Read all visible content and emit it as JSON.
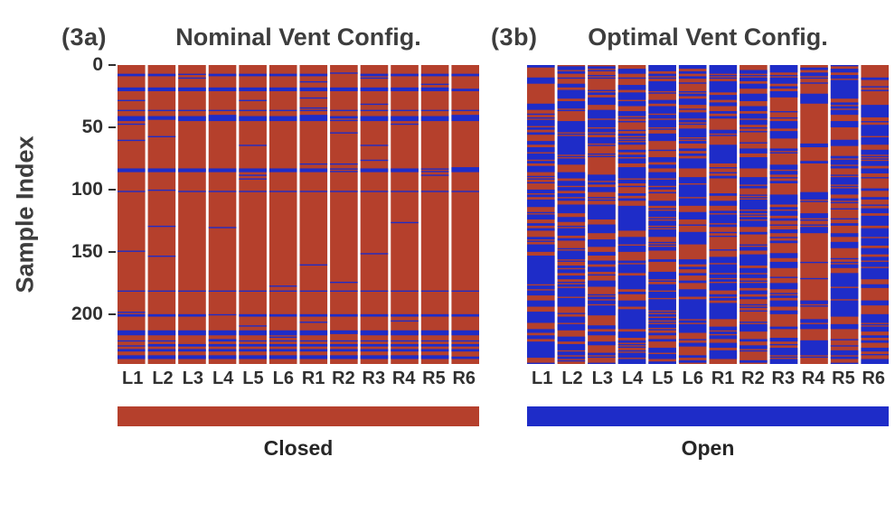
{
  "figure": {
    "ylabel": "Sample Index",
    "yticks": [
      0,
      50,
      100,
      150,
      200
    ],
    "n_samples": 240,
    "columns": [
      "L1",
      "L2",
      "L3",
      "L4",
      "L5",
      "L6",
      "R1",
      "R2",
      "R3",
      "R4",
      "R5",
      "R6"
    ],
    "panels": [
      {
        "tag": "(3a)",
        "title": "Nominal Vent Config."
      },
      {
        "tag": "(3b)",
        "title": "Optimal Vent Config."
      }
    ],
    "legend": [
      {
        "label": "Closed",
        "color": "#b5402c"
      },
      {
        "label": "Open",
        "color": "#1e2cc8"
      }
    ],
    "text_color": "#3d3d3d"
  },
  "chart_data": [
    {
      "type": "heatmap",
      "panel": "(3a)",
      "title": "Nominal Vent Config.",
      "x_categories": [
        "L1",
        "L2",
        "L3",
        "L4",
        "L5",
        "L6",
        "R1",
        "R2",
        "R3",
        "R4",
        "R5",
        "R6"
      ],
      "xlabel": "",
      "ylabel": "Sample Index",
      "y_range": [
        0,
        240
      ],
      "yticks": [
        0,
        50,
        100,
        150,
        200
      ],
      "cell_states": {
        "closed": {
          "label": "Closed",
          "color": "#b5402c"
        },
        "open": {
          "label": "Open",
          "color": "#1e2cc8"
        }
      },
      "open_fraction_overall": 0.15,
      "column_open_fraction": [
        0.15,
        0.15,
        0.15,
        0.15,
        0.15,
        0.15,
        0.15,
        0.15,
        0.15,
        0.15,
        0.15,
        0.15
      ],
      "pattern": "Predominantly Closed (red) background with sparse thin horizontal Open (blue) bands that span all 12 vents simultaneously",
      "generator": {
        "mode": "row-band",
        "seed": 11,
        "p_start": 0.085,
        "p_stay": 0.5,
        "cell_open_in_band": 0.96,
        "cell_noise_open": 0.015
      }
    },
    {
      "type": "heatmap",
      "panel": "(3b)",
      "title": "Optimal Vent Config.",
      "x_categories": [
        "L1",
        "L2",
        "L3",
        "L4",
        "L5",
        "L6",
        "R1",
        "R2",
        "R3",
        "R4",
        "R5",
        "R6"
      ],
      "xlabel": "",
      "ylabel": "Sample Index",
      "y_range": [
        0,
        240
      ],
      "yticks": [
        0,
        50,
        100,
        150,
        200
      ],
      "cell_states": {
        "closed": {
          "label": "Closed",
          "color": "#b5402c"
        },
        "open": {
          "label": "Open",
          "color": "#1e2cc8"
        }
      },
      "open_fraction_overall": 0.52,
      "column_open_fraction": [
        0.56,
        0.6,
        0.52,
        0.54,
        0.58,
        0.52,
        0.52,
        0.58,
        0.46,
        0.3,
        0.53,
        0.5
      ],
      "pattern": "Mixed Open (blue) and Closed (red) horizontal runs that vary per vent and per sample; vent R4 is mostly Closed",
      "generator": {
        "mode": "column-runs",
        "seed": 29,
        "stay": 0.72,
        "band_open_p": 0.03,
        "band_closed_p": 0.02,
        "band_stay": 0.45
      }
    }
  ]
}
